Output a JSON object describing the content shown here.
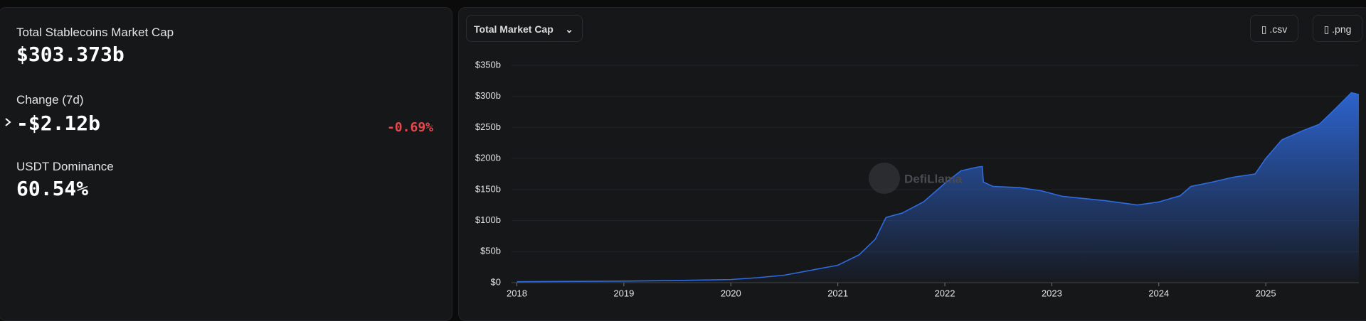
{
  "stats": [
    {
      "label": "Total Stablecoins Market Cap",
      "value": "$303.373b"
    },
    {
      "label": "Change (7d)",
      "value": "-$2.12b",
      "change": "-0.69%"
    },
    {
      "label": "USDT Dominance",
      "value": "60.54%"
    }
  ],
  "controls": {
    "metric": "Total Market Cap",
    "csv": ".csv",
    "png": ".png"
  },
  "watermark": "DefiLlama",
  "chart_data": {
    "type": "area",
    "color": "#2f6be0",
    "x": [
      2018,
      2019,
      2019.5,
      2020,
      2020.25,
      2020.5,
      2020.75,
      2021,
      2021.2,
      2021.35,
      2021.45,
      2021.6,
      2021.8,
      2022,
      2022.15,
      2022.3,
      2022.35,
      2022.36,
      2022.45,
      2022.7,
      2022.9,
      2023.1,
      2023.5,
      2023.8,
      2024,
      2024.2,
      2024.3,
      2024.5,
      2024.7,
      2024.9,
      2025,
      2025.15,
      2025.35,
      2025.5,
      2025.65,
      2025.8,
      2025.87
    ],
    "values": [
      1.5,
      2.5,
      3.5,
      5,
      8,
      12,
      20,
      28,
      45,
      70,
      105,
      112,
      130,
      160,
      180,
      186,
      187,
      162,
      155,
      153,
      148,
      139,
      132,
      125,
      130,
      140,
      155,
      162,
      170,
      175,
      200,
      230,
      245,
      255,
      280,
      306,
      303
    ],
    "xlim": [
      2017.95,
      2025.87
    ],
    "xticks": [
      2018,
      2019,
      2020,
      2021,
      2022,
      2023,
      2024,
      2025
    ],
    "ylim": [
      0,
      350
    ],
    "yticks": [
      {
        "value": 0,
        "label": "$0"
      },
      {
        "value": 50,
        "label": "$50b"
      },
      {
        "value": 100,
        "label": "$100b"
      },
      {
        "value": 150,
        "label": "$150b"
      },
      {
        "value": 200,
        "label": "$200b"
      },
      {
        "value": 250,
        "label": "$250b"
      },
      {
        "value": 300,
        "label": "$300b"
      },
      {
        "value": 350,
        "label": "$350b"
      }
    ],
    "grid": true
  }
}
